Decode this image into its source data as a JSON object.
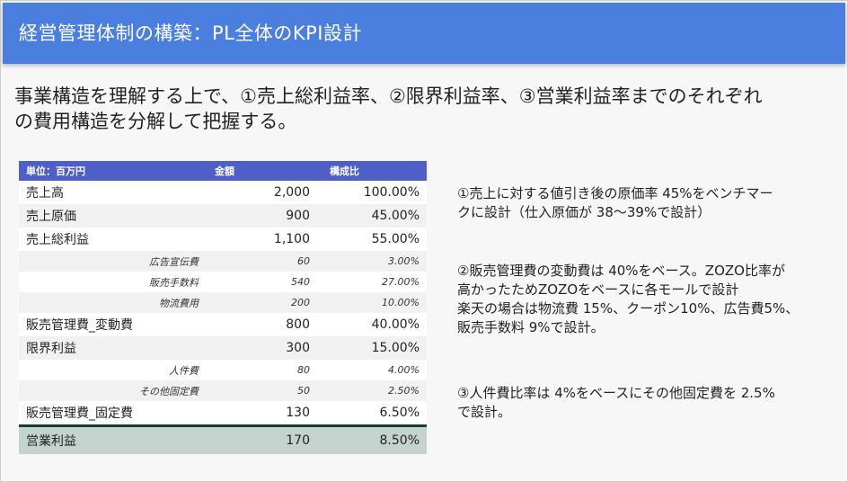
{
  "slide": {
    "title": "経営管理体制の構築：PL全体のKPI設計",
    "headline_lines": [
      "事業構造を理解する上で、①売上総利益率、②限界利益率、③営業利益率までのそれぞれ",
      "の費用構造を分解して把握する。"
    ]
  },
  "table": {
    "headers": [
      "単位：百万円",
      "金額",
      "構成比"
    ],
    "rows": [
      {
        "label": "売上高",
        "amount": "2,000",
        "ratio": "100.00%",
        "kind": "main"
      },
      {
        "label": "売上原価",
        "amount": "900",
        "ratio": "45.00%",
        "kind": "main"
      },
      {
        "label": "売上総利益",
        "amount": "1,100",
        "ratio": "55.00%",
        "kind": "main"
      },
      {
        "label": "広告宣伝費",
        "amount": "60",
        "ratio": "3.00%",
        "kind": "sub"
      },
      {
        "label": "販売手数料",
        "amount": "540",
        "ratio": "27.00%",
        "kind": "sub"
      },
      {
        "label": "物流費用",
        "amount": "200",
        "ratio": "10.00%",
        "kind": "sub"
      },
      {
        "label": "販売管理費_変動費",
        "amount": "800",
        "ratio": "40.00%",
        "kind": "main"
      },
      {
        "label": "限界利益",
        "amount": "300",
        "ratio": "15.00%",
        "kind": "main"
      },
      {
        "label": "人件費",
        "amount": "80",
        "ratio": "4.00%",
        "kind": "sub"
      },
      {
        "label": "その他固定費",
        "amount": "50",
        "ratio": "2.50%",
        "kind": "sub"
      },
      {
        "label": "販売管理費_固定費",
        "amount": "130",
        "ratio": "6.50%",
        "kind": "main"
      }
    ],
    "total": {
      "label": "営業利益",
      "amount": "170",
      "ratio": "8.50%"
    }
  },
  "notes": [
    [
      "①売上に対する値引き後の原価率 45%をベンチマー",
      "クに設計（仕入原価が 38～39%で設計）"
    ],
    [
      "②販売管理費の変動費は 40%をベース。ZOZO比率が",
      "高かったためZOZOをベースに各モールで設計",
      "楽天の場合は物流費 15%、クーポン10%、広告費5%、",
      "販売手数料 9%で設計。"
    ],
    [
      "③人件費比率は 4%をベースにその他固定費を 2.5%",
      "で設計。"
    ]
  ],
  "colors": {
    "title_bar": "#4a7fe0",
    "table_header": "#4f5fc8",
    "total_row": "#c4d3cd"
  }
}
